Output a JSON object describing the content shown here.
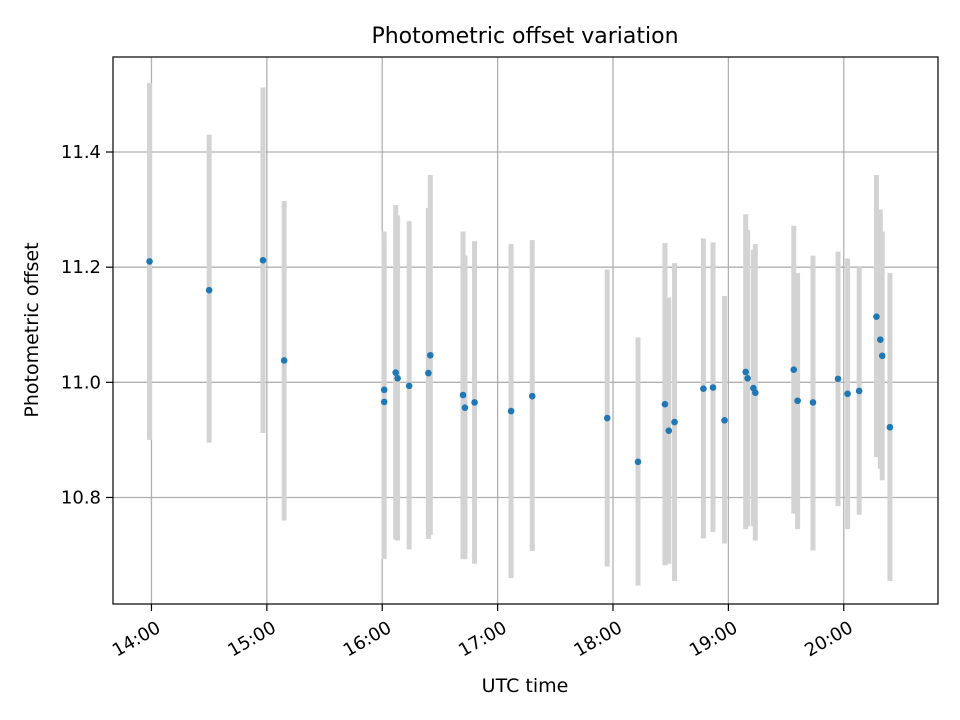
{
  "chart_data": {
    "type": "scatter",
    "title": "Photometric offset variation",
    "xlabel": "UTC time",
    "ylabel": "Photometric offset",
    "x_ticks": [
      "14:00",
      "15:00",
      "16:00",
      "17:00",
      "18:00",
      "19:00",
      "20:00"
    ],
    "y_ticks": [
      "10.8",
      "11.0",
      "11.2",
      "11.4"
    ],
    "xlim": [
      "13:40",
      "20:49"
    ],
    "ylim": [
      10.615,
      11.565
    ],
    "grid": true,
    "colors": {
      "marker": "#1f77b4",
      "errorbar": "#d3d3d3",
      "grid": "#b0b0b0"
    },
    "series": [
      {
        "points": [
          {
            "t": "13:59",
            "y": 11.21,
            "lo": 10.9,
            "hi": 11.52
          },
          {
            "t": "14:30",
            "y": 11.16,
            "lo": 10.895,
            "hi": 11.43
          },
          {
            "t": "14:58",
            "y": 11.212,
            "lo": 10.912,
            "hi": 11.512
          },
          {
            "t": "15:09",
            "y": 11.038,
            "lo": 10.76,
            "hi": 11.315
          },
          {
            "t": "16:01",
            "y": 10.987,
            "lo": 10.715,
            "hi": 11.262
          },
          {
            "t": "16:01",
            "y": 10.966,
            "lo": 10.693,
            "hi": 11.24
          },
          {
            "t": "16:07",
            "y": 11.017,
            "lo": 10.727,
            "hi": 11.308
          },
          {
            "t": "16:08",
            "y": 11.007,
            "lo": 10.725,
            "hi": 11.29
          },
          {
            "t": "16:14",
            "y": 10.994,
            "lo": 10.71,
            "hi": 11.28
          },
          {
            "t": "16:24",
            "y": 11.016,
            "lo": 10.728,
            "hi": 11.303
          },
          {
            "t": "16:25",
            "y": 11.047,
            "lo": 10.735,
            "hi": 11.36
          },
          {
            "t": "16:42",
            "y": 10.978,
            "lo": 10.693,
            "hi": 11.262
          },
          {
            "t": "16:43",
            "y": 10.956,
            "lo": 10.693,
            "hi": 11.22
          },
          {
            "t": "16:48",
            "y": 10.965,
            "lo": 10.685,
            "hi": 11.245
          },
          {
            "t": "17:07",
            "y": 10.95,
            "lo": 10.66,
            "hi": 11.24
          },
          {
            "t": "17:18",
            "y": 10.976,
            "lo": 10.707,
            "hi": 11.247
          },
          {
            "t": "17:57",
            "y": 10.938,
            "lo": 10.68,
            "hi": 11.196
          },
          {
            "t": "18:13",
            "y": 10.862,
            "lo": 10.647,
            "hi": 11.078
          },
          {
            "t": "18:27",
            "y": 10.962,
            "lo": 10.682,
            "hi": 11.242
          },
          {
            "t": "18:29",
            "y": 10.916,
            "lo": 10.685,
            "hi": 11.147
          },
          {
            "t": "18:32",
            "y": 10.931,
            "lo": 10.655,
            "hi": 11.207
          },
          {
            "t": "18:47",
            "y": 10.989,
            "lo": 10.729,
            "hi": 11.25
          },
          {
            "t": "18:52",
            "y": 10.991,
            "lo": 10.74,
            "hi": 11.243
          },
          {
            "t": "18:58",
            "y": 10.934,
            "lo": 10.72,
            "hi": 11.15
          },
          {
            "t": "19:09",
            "y": 11.018,
            "lo": 10.745,
            "hi": 11.292
          },
          {
            "t": "19:10",
            "y": 11.007,
            "lo": 10.75,
            "hi": 11.265
          },
          {
            "t": "19:13",
            "y": 10.99,
            "lo": 10.75,
            "hi": 11.23
          },
          {
            "t": "19:14",
            "y": 10.982,
            "lo": 10.725,
            "hi": 11.24
          },
          {
            "t": "19:34",
            "y": 11.022,
            "lo": 10.772,
            "hi": 11.272
          },
          {
            "t": "19:36",
            "y": 10.968,
            "lo": 10.745,
            "hi": 11.19
          },
          {
            "t": "19:44",
            "y": 10.965,
            "lo": 10.708,
            "hi": 11.22
          },
          {
            "t": "19:57",
            "y": 11.006,
            "lo": 10.785,
            "hi": 11.227
          },
          {
            "t": "20:02",
            "y": 10.98,
            "lo": 10.745,
            "hi": 11.215
          },
          {
            "t": "20:08",
            "y": 10.985,
            "lo": 10.77,
            "hi": 11.2
          },
          {
            "t": "20:17",
            "y": 11.114,
            "lo": 10.87,
            "hi": 11.36
          },
          {
            "t": "20:19",
            "y": 11.074,
            "lo": 10.85,
            "hi": 11.3
          },
          {
            "t": "20:20",
            "y": 11.046,
            "lo": 10.83,
            "hi": 11.262
          },
          {
            "t": "20:24",
            "y": 10.922,
            "lo": 10.655,
            "hi": 11.19
          }
        ]
      }
    ]
  }
}
